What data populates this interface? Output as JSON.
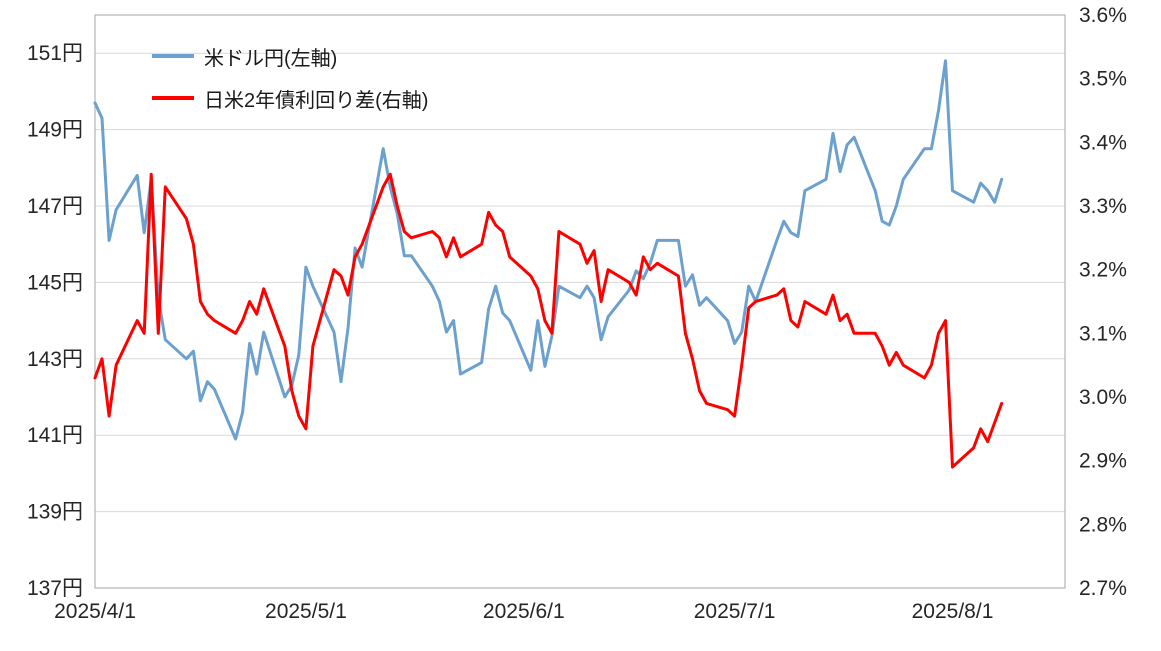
{
  "chart_data": {
    "type": "line",
    "title": "",
    "legend": {
      "position": "top-left-inside",
      "items": [
        {
          "label": "米ドル円(左軸)",
          "color": "#6CA0CF"
        },
        {
          "label": "日米2年債利回り差(右軸)",
          "color": "#FF0000"
        }
      ]
    },
    "x_axis": {
      "min_date": "2025-04-01",
      "max_date": "2025-08-17",
      "ticks": [
        {
          "label": "2025/4/1",
          "date": "2025-04-01"
        },
        {
          "label": "2025/5/1",
          "date": "2025-05-01"
        },
        {
          "label": "2025/6/1",
          "date": "2025-06-01"
        },
        {
          "label": "2025/7/1",
          "date": "2025-07-01"
        },
        {
          "label": "2025/8/1",
          "date": "2025-08-01"
        }
      ]
    },
    "left_axis": {
      "min": 137,
      "max": 152,
      "unit": "円",
      "ticks": [
        {
          "label": "151円",
          "value": 151
        },
        {
          "label": "149円",
          "value": 149
        },
        {
          "label": "147円",
          "value": 147
        },
        {
          "label": "145円",
          "value": 145
        },
        {
          "label": "143円",
          "value": 143
        },
        {
          "label": "141円",
          "value": 141
        },
        {
          "label": "139円",
          "value": 139
        },
        {
          "label": "137円",
          "value": 137
        }
      ]
    },
    "right_axis": {
      "min": 2.7,
      "max": 3.6,
      "unit": "%",
      "ticks": [
        {
          "label": "3.6%",
          "value": 3.6
        },
        {
          "label": "3.5%",
          "value": 3.5
        },
        {
          "label": "3.4%",
          "value": 3.4
        },
        {
          "label": "3.3%",
          "value": 3.3
        },
        {
          "label": "3.2%",
          "value": 3.2
        },
        {
          "label": "3.1%",
          "value": 3.1
        },
        {
          "label": "3.0%",
          "value": 3.0
        },
        {
          "label": "2.9%",
          "value": 2.9
        },
        {
          "label": "2.8%",
          "value": 2.8
        },
        {
          "label": "2.7%",
          "value": 2.7
        }
      ]
    },
    "grid": "horizontal-left-axis",
    "x": [
      "2025-04-01",
      "2025-04-02",
      "2025-04-03",
      "2025-04-04",
      "2025-04-07",
      "2025-04-08",
      "2025-04-09",
      "2025-04-10",
      "2025-04-11",
      "2025-04-14",
      "2025-04-15",
      "2025-04-16",
      "2025-04-17",
      "2025-04-18",
      "2025-04-21",
      "2025-04-22",
      "2025-04-23",
      "2025-04-24",
      "2025-04-25",
      "2025-04-28",
      "2025-04-29",
      "2025-04-30",
      "2025-05-01",
      "2025-05-02",
      "2025-05-05",
      "2025-05-06",
      "2025-05-07",
      "2025-05-08",
      "2025-05-09",
      "2025-05-12",
      "2025-05-13",
      "2025-05-14",
      "2025-05-15",
      "2025-05-16",
      "2025-05-19",
      "2025-05-20",
      "2025-05-21",
      "2025-05-22",
      "2025-05-23",
      "2025-05-26",
      "2025-05-27",
      "2025-05-28",
      "2025-05-29",
      "2025-05-30",
      "2025-06-02",
      "2025-06-03",
      "2025-06-04",
      "2025-06-05",
      "2025-06-06",
      "2025-06-09",
      "2025-06-10",
      "2025-06-11",
      "2025-06-12",
      "2025-06-13",
      "2025-06-16",
      "2025-06-17",
      "2025-06-18",
      "2025-06-19",
      "2025-06-20",
      "2025-06-23",
      "2025-06-24",
      "2025-06-25",
      "2025-06-26",
      "2025-06-27",
      "2025-06-30",
      "2025-07-01",
      "2025-07-02",
      "2025-07-03",
      "2025-07-04",
      "2025-07-07",
      "2025-07-08",
      "2025-07-09",
      "2025-07-10",
      "2025-07-11",
      "2025-07-14",
      "2025-07-15",
      "2025-07-16",
      "2025-07-17",
      "2025-07-18",
      "2025-07-21",
      "2025-07-22",
      "2025-07-23",
      "2025-07-24",
      "2025-07-25",
      "2025-07-28",
      "2025-07-29",
      "2025-07-30",
      "2025-07-31",
      "2025-08-01",
      "2025-08-04",
      "2025-08-05",
      "2025-08-06",
      "2025-08-07",
      "2025-08-08"
    ],
    "series": [
      {
        "name": "米ドル円(左軸)",
        "axis": "left",
        "color": "#6CA0CF",
        "values": [
          149.7,
          149.3,
          146.1,
          146.9,
          147.8,
          146.3,
          147.7,
          144.6,
          143.5,
          143.0,
          143.2,
          141.9,
          142.4,
          142.2,
          140.9,
          141.6,
          143.4,
          142.6,
          143.7,
          142.0,
          142.3,
          143.1,
          145.4,
          144.9,
          143.7,
          142.4,
          143.8,
          145.9,
          145.4,
          148.5,
          147.5,
          146.8,
          145.7,
          145.7,
          144.9,
          144.5,
          143.7,
          144.0,
          142.6,
          142.9,
          144.3,
          144.9,
          144.2,
          144.0,
          142.7,
          144.0,
          142.8,
          143.6,
          144.9,
          144.6,
          144.9,
          144.6,
          143.5,
          144.1,
          144.8,
          145.3,
          145.1,
          145.5,
          146.1,
          146.1,
          144.9,
          145.2,
          144.4,
          144.6,
          144.0,
          143.4,
          143.7,
          144.9,
          144.5,
          146.1,
          146.6,
          146.3,
          146.2,
          147.4,
          147.7,
          148.9,
          147.9,
          148.6,
          148.8,
          147.4,
          146.6,
          146.5,
          147.0,
          147.7,
          148.5,
          148.5,
          149.5,
          150.8,
          147.4,
          147.1,
          147.6,
          147.4,
          147.1,
          147.7
        ]
      },
      {
        "name": "日米2年債利回り差(右軸)",
        "axis": "right",
        "color": "#FF0000",
        "values": [
          3.03,
          3.06,
          2.97,
          3.05,
          3.12,
          3.1,
          3.35,
          3.1,
          3.33,
          3.28,
          3.24,
          3.15,
          3.13,
          3.12,
          3.1,
          3.12,
          3.15,
          3.13,
          3.17,
          3.08,
          3.01,
          2.97,
          2.95,
          3.08,
          3.2,
          3.19,
          3.16,
          3.22,
          3.24,
          3.33,
          3.35,
          3.3,
          3.26,
          3.25,
          3.26,
          3.25,
          3.22,
          3.25,
          3.22,
          3.24,
          3.29,
          3.27,
          3.26,
          3.22,
          3.19,
          3.17,
          3.12,
          3.1,
          3.26,
          3.24,
          3.21,
          3.23,
          3.15,
          3.2,
          3.18,
          3.16,
          3.22,
          3.2,
          3.21,
          3.19,
          3.1,
          3.06,
          3.01,
          2.99,
          2.98,
          2.97,
          3.05,
          3.14,
          3.15,
          3.16,
          3.17,
          3.12,
          3.11,
          3.15,
          3.13,
          3.16,
          3.12,
          3.13,
          3.1,
          3.1,
          3.08,
          3.05,
          3.07,
          3.05,
          3.03,
          3.05,
          3.1,
          3.12,
          2.89,
          2.92,
          2.95,
          2.93,
          2.96,
          2.99
        ]
      }
    ],
    "colors": {
      "gridline": "#d9d9d9",
      "plot_border": "#a6a6a6",
      "tick_text": "#262626"
    }
  }
}
